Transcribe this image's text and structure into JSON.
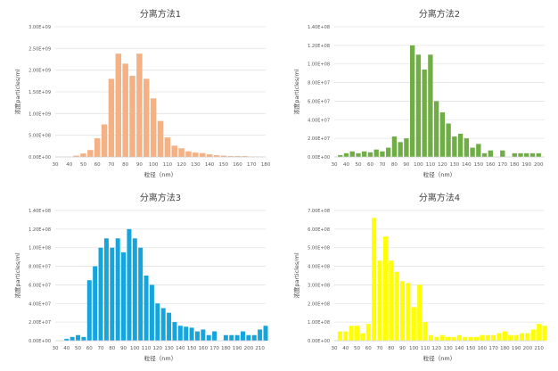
{
  "chart_data": [
    {
      "type": "bar",
      "title": "分离方法1",
      "xlabel": "粒径（nm）",
      "ylabel": "浓度particles/ml",
      "color": "#F4B183",
      "ylim": [
        0,
        3000000000
      ],
      "y_ticks": [
        "0.00E+00",
        "5.00E+08",
        "1.00E+09",
        "1.50E+09",
        "2.00E+09",
        "2.50E+09",
        "3.00E+09"
      ],
      "x_ticks": [
        "30",
        "40",
        "50",
        "60",
        "70",
        "80",
        "90",
        "100",
        "110",
        "120",
        "130",
        "140",
        "150",
        "160",
        "170",
        "180"
      ],
      "x_range": [
        30,
        180
      ],
      "x": [
        45,
        50,
        55,
        60,
        65,
        70,
        75,
        80,
        85,
        90,
        95,
        100,
        105,
        110,
        115,
        120,
        125,
        130,
        135,
        140,
        145,
        150,
        155,
        160,
        165,
        170,
        175
      ],
      "values": [
        30000000,
        80000000,
        160000000,
        430000000,
        750000000,
        1800000000,
        2380000000,
        2150000000,
        1870000000,
        2380000000,
        1800000000,
        1350000000,
        830000000,
        450000000,
        260000000,
        200000000,
        130000000,
        100000000,
        90000000,
        60000000,
        40000000,
        30000000,
        20000000,
        20000000,
        20000000,
        10000000,
        10000000
      ]
    },
    {
      "type": "bar",
      "title": "分离方法2",
      "xlabel": "粒径（nm）",
      "ylabel": "浓度particles/ml",
      "color": "#70AD47",
      "ylim": [
        0,
        140000000
      ],
      "y_ticks": [
        "0.00E+00",
        "2.00E+07",
        "4.00E+07",
        "6.00E+07",
        "8.00E+07",
        "1.00E+08",
        "1.20E+08",
        "1.40E+08"
      ],
      "x_ticks": [
        "30",
        "40",
        "50",
        "60",
        "70",
        "80",
        "90",
        "100",
        "110",
        "120",
        "130",
        "140",
        "150",
        "160",
        "170",
        "180",
        "190",
        "200"
      ],
      "x_range": [
        30,
        205
      ],
      "x": [
        35,
        40,
        45,
        50,
        55,
        60,
        65,
        70,
        75,
        80,
        85,
        90,
        95,
        100,
        105,
        110,
        115,
        120,
        125,
        130,
        135,
        140,
        145,
        150,
        155,
        160,
        165,
        170,
        175,
        180,
        185,
        190,
        195,
        200
      ],
      "values": [
        2000000,
        4000000,
        6000000,
        4000000,
        6000000,
        5000000,
        8000000,
        6000000,
        10000000,
        22000000,
        16000000,
        20000000,
        120000000,
        110000000,
        94000000,
        110000000,
        60000000,
        48000000,
        36000000,
        22000000,
        25000000,
        20000000,
        10000000,
        14000000,
        4000000,
        7000000,
        0,
        7000000,
        0,
        4000000,
        4000000,
        4000000,
        4000000,
        4000000
      ]
    },
    {
      "type": "bar",
      "title": "分离方法3",
      "xlabel": "粒径（nm）",
      "ylabel": "浓度particles/ml",
      "color": "#15A4DB",
      "ylim": [
        0,
        140000000
      ],
      "y_ticks": [
        "0.00E+00",
        "2.00E+07",
        "4.00E+07",
        "6.00E+07",
        "8.00E+07",
        "1.00E+08",
        "1.20E+08",
        "1.40E+08"
      ],
      "x_ticks": [
        "30",
        "40",
        "50",
        "60",
        "70",
        "80",
        "90",
        "100",
        "110",
        "120",
        "130",
        "140",
        "150",
        "160",
        "170",
        "180",
        "190",
        "200",
        "210"
      ],
      "x_range": [
        30,
        215
      ],
      "x": [
        40,
        45,
        50,
        55,
        60,
        65,
        70,
        75,
        80,
        85,
        90,
        95,
        100,
        105,
        110,
        115,
        120,
        125,
        130,
        135,
        140,
        145,
        150,
        155,
        160,
        165,
        170,
        175,
        180,
        185,
        190,
        195,
        200,
        205,
        210,
        215
      ],
      "values": [
        2000000,
        4000000,
        6000000,
        4000000,
        65000000,
        80000000,
        100000000,
        110000000,
        100000000,
        110000000,
        95000000,
        120000000,
        110000000,
        100000000,
        70000000,
        60000000,
        40000000,
        35000000,
        30000000,
        20000000,
        16000000,
        15000000,
        14000000,
        10000000,
        12000000,
        6000000,
        10000000,
        0,
        6000000,
        6000000,
        6000000,
        10000000,
        6000000,
        6000000,
        12000000,
        16000000
      ]
    },
    {
      "type": "bar",
      "title": "分离方法4",
      "xlabel": "粒径（nm）",
      "ylabel": "浓度particles/ml",
      "color": "#FFFF00",
      "ylim": [
        0,
        700000000
      ],
      "y_ticks": [
        "0.00E+00",
        "1.00E+08",
        "2.00E+08",
        "3.00E+08",
        "4.00E+08",
        "5.00E+08",
        "6.00E+08",
        "7.00E+08"
      ],
      "x_ticks": [
        "30",
        "40",
        "50",
        "60",
        "70",
        "80",
        "90",
        "100",
        "110",
        "120",
        "130",
        "140",
        "150",
        "160",
        "170",
        "180",
        "190",
        "200",
        "210"
      ],
      "x_range": [
        30,
        215
      ],
      "x": [
        35,
        40,
        45,
        50,
        55,
        60,
        65,
        70,
        75,
        80,
        85,
        90,
        95,
        100,
        105,
        110,
        115,
        120,
        125,
        130,
        135,
        140,
        145,
        150,
        155,
        160,
        165,
        170,
        175,
        180,
        185,
        190,
        195,
        200,
        205,
        210,
        215
      ],
      "values": [
        50000000,
        50000000,
        80000000,
        80000000,
        40000000,
        90000000,
        660000000,
        430000000,
        560000000,
        430000000,
        370000000,
        320000000,
        310000000,
        180000000,
        300000000,
        100000000,
        30000000,
        20000000,
        30000000,
        20000000,
        20000000,
        30000000,
        20000000,
        20000000,
        20000000,
        30000000,
        30000000,
        30000000,
        40000000,
        50000000,
        30000000,
        30000000,
        40000000,
        40000000,
        60000000,
        90000000,
        80000000
      ]
    }
  ]
}
